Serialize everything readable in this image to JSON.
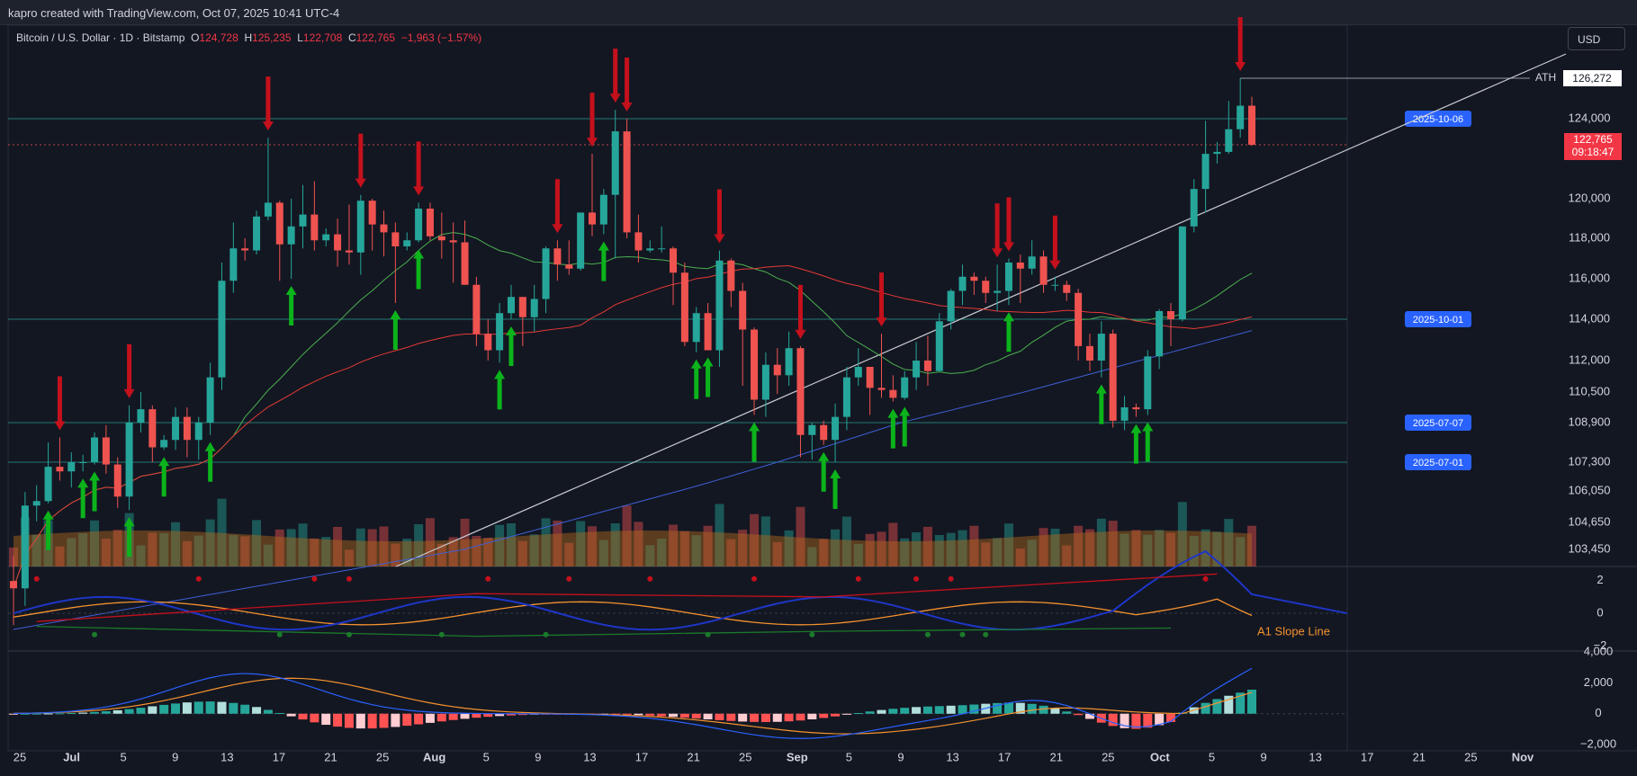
{
  "header": {
    "attribution": "kapro created with TradingView.com, Oct 07, 2025 10:41 UTC-4"
  },
  "legend": {
    "symbol": "Bitcoin / U.S. Dollar · 1D · Bitstamp",
    "open_label": "O",
    "open": "124,728",
    "high_label": "H",
    "high": "125,235",
    "low_label": "L",
    "low": "122,708",
    "close_label": "C",
    "close": "122,765",
    "change": "−1,963 (−1.57%)"
  },
  "currency_button": "USD",
  "colors": {
    "background": "#131722",
    "up": "#26a69a",
    "down": "#ef5350",
    "accent_blue": "#2962ff",
    "signal_up": "#0cb31b",
    "signal_down": "#c4111c",
    "orange": "#f5922e"
  },
  "chart_data": [
    {
      "type": "candlestick",
      "title": "Bitcoin / U.S. Dollar · 1D · Bitstamp",
      "x_tick_labels": [
        "25",
        "Jul",
        "5",
        "9",
        "13",
        "17",
        "21",
        "25",
        "Aug",
        "5",
        "9",
        "13",
        "17",
        "21",
        "25",
        "Sep",
        "5",
        "9",
        "13",
        "17",
        "21",
        "25",
        "Oct",
        "5",
        "9",
        "13",
        "17",
        "21",
        "25",
        "Nov"
      ],
      "y_tick_labels": [
        "124,000",
        "120,000",
        "118,000",
        "116,000",
        "114,000",
        "112,000",
        "110,500",
        "108,900",
        "107,300",
        "106,050",
        "104,650",
        "103,450"
      ],
      "y_ticks": [
        124000,
        120000,
        118000,
        116000,
        114000,
        112000,
        110500,
        108900,
        107300,
        106050,
        104650,
        103450
      ],
      "current_price": {
        "value": "122,765",
        "countdown": "09:18:47"
      },
      "ath": {
        "label": "ATH",
        "value": "126,272"
      },
      "horizontal_levels": [
        {
          "label": "2025-10-06",
          "price": 124000
        },
        {
          "label": "2025-10-01",
          "price": 114000
        },
        {
          "label": "2025-07-07",
          "price": 108900
        },
        {
          "label": "2025-07-01",
          "price": 107300
        }
      ],
      "candles": [
        {
          "d": "2025-06-22",
          "o": 101300,
          "h": 103000,
          "l": 98300,
          "c": 100800
        },
        {
          "d": "2025-06-23",
          "o": 100800,
          "h": 106000,
          "l": 99600,
          "c": 105400
        },
        {
          "d": "2025-06-24",
          "o": 105400,
          "h": 106300,
          "l": 104700,
          "c": 105600
        },
        {
          "d": "2025-06-25",
          "o": 105600,
          "h": 108100,
          "l": 105500,
          "c": 107100
        },
        {
          "d": "2025-06-26",
          "o": 107100,
          "h": 108300,
          "l": 106500,
          "c": 106900
        },
        {
          "d": "2025-06-27",
          "o": 106900,
          "h": 107700,
          "l": 106200,
          "c": 107300
        },
        {
          "d": "2025-06-28",
          "o": 107300,
          "h": 107600,
          "l": 106900,
          "c": 107300
        },
        {
          "d": "2025-06-29",
          "o": 107300,
          "h": 108500,
          "l": 107200,
          "c": 108300
        },
        {
          "d": "2025-06-30",
          "o": 108300,
          "h": 108800,
          "l": 106800,
          "c": 107200
        },
        {
          "d": "2025-07-01",
          "o": 107200,
          "h": 107500,
          "l": 105300,
          "c": 105800
        },
        {
          "d": "2025-07-02",
          "o": 105800,
          "h": 109800,
          "l": 105200,
          "c": 108900
        },
        {
          "d": "2025-07-03",
          "o": 108900,
          "h": 110500,
          "l": 108500,
          "c": 109600
        },
        {
          "d": "2025-07-04",
          "o": 109600,
          "h": 109800,
          "l": 107300,
          "c": 107900
        },
        {
          "d": "2025-07-05",
          "o": 107900,
          "h": 108400,
          "l": 107800,
          "c": 108200
        },
        {
          "d": "2025-07-06",
          "o": 108200,
          "h": 109700,
          "l": 107800,
          "c": 109200
        },
        {
          "d": "2025-07-07",
          "o": 109200,
          "h": 109700,
          "l": 107500,
          "c": 108200
        },
        {
          "d": "2025-07-08",
          "o": 108200,
          "h": 109200,
          "l": 107400,
          "c": 108900
        },
        {
          "d": "2025-07-09",
          "o": 108900,
          "h": 111900,
          "l": 108400,
          "c": 111200
        },
        {
          "d": "2025-07-10",
          "o": 111200,
          "h": 116800,
          "l": 110600,
          "c": 115900
        },
        {
          "d": "2025-07-11",
          "o": 115900,
          "h": 118800,
          "l": 115300,
          "c": 117500
        },
        {
          "d": "2025-07-12",
          "o": 117500,
          "h": 118000,
          "l": 116900,
          "c": 117400
        },
        {
          "d": "2025-07-13",
          "o": 117400,
          "h": 119400,
          "l": 117200,
          "c": 119100
        },
        {
          "d": "2025-07-14",
          "o": 119100,
          "h": 123100,
          "l": 118900,
          "c": 119800
        },
        {
          "d": "2025-07-15",
          "o": 119800,
          "h": 119900,
          "l": 115900,
          "c": 117700
        },
        {
          "d": "2025-07-16",
          "o": 117700,
          "h": 120000,
          "l": 116000,
          "c": 118600
        },
        {
          "d": "2025-07-17",
          "o": 118600,
          "h": 120700,
          "l": 117500,
          "c": 119200
        },
        {
          "d": "2025-07-18",
          "o": 119200,
          "h": 120900,
          "l": 117400,
          "c": 117900
        },
        {
          "d": "2025-07-19",
          "o": 117900,
          "h": 118500,
          "l": 117600,
          "c": 118200
        },
        {
          "d": "2025-07-20",
          "o": 118200,
          "h": 119000,
          "l": 116600,
          "c": 117400
        },
        {
          "d": "2025-07-21",
          "o": 117400,
          "h": 119700,
          "l": 116700,
          "c": 117300
        },
        {
          "d": "2025-07-22",
          "o": 117300,
          "h": 120200,
          "l": 116200,
          "c": 119900
        },
        {
          "d": "2025-07-23",
          "o": 119900,
          "h": 120000,
          "l": 117400,
          "c": 118700
        },
        {
          "d": "2025-07-24",
          "o": 118700,
          "h": 119400,
          "l": 117100,
          "c": 118300
        },
        {
          "d": "2025-07-25",
          "o": 118300,
          "h": 118800,
          "l": 114800,
          "c": 117600
        },
        {
          "d": "2025-07-26",
          "o": 117600,
          "h": 118300,
          "l": 117400,
          "c": 117900
        },
        {
          "d": "2025-07-27",
          "o": 117900,
          "h": 119800,
          "l": 117800,
          "c": 119500
        },
        {
          "d": "2025-07-28",
          "o": 119500,
          "h": 119800,
          "l": 117900,
          "c": 118100
        },
        {
          "d": "2025-07-29",
          "o": 118100,
          "h": 119300,
          "l": 117000,
          "c": 117900
        },
        {
          "d": "2025-07-30",
          "o": 117900,
          "h": 118800,
          "l": 115800,
          "c": 117800
        },
        {
          "d": "2025-07-31",
          "o": 117800,
          "h": 118900,
          "l": 115700,
          "c": 115700
        },
        {
          "d": "2025-08-01",
          "o": 115700,
          "h": 116100,
          "l": 112700,
          "c": 113300
        },
        {
          "d": "2025-08-02",
          "o": 113300,
          "h": 114000,
          "l": 112000,
          "c": 112500
        },
        {
          "d": "2025-08-03",
          "o": 112500,
          "h": 114800,
          "l": 111900,
          "c": 114300
        },
        {
          "d": "2025-08-04",
          "o": 114300,
          "h": 115700,
          "l": 114000,
          "c": 115100
        },
        {
          "d": "2025-08-05",
          "o": 115100,
          "h": 115100,
          "l": 112700,
          "c": 114100
        },
        {
          "d": "2025-08-06",
          "o": 114100,
          "h": 115700,
          "l": 113400,
          "c": 115000
        },
        {
          "d": "2025-08-07",
          "o": 115000,
          "h": 117600,
          "l": 114300,
          "c": 117500
        },
        {
          "d": "2025-08-08",
          "o": 117500,
          "h": 117900,
          "l": 115900,
          "c": 116700
        },
        {
          "d": "2025-08-09",
          "o": 116700,
          "h": 117900,
          "l": 116200,
          "c": 116500
        },
        {
          "d": "2025-08-10",
          "o": 116500,
          "h": 119300,
          "l": 116400,
          "c": 119300
        },
        {
          "d": "2025-08-11",
          "o": 119300,
          "h": 122300,
          "l": 118100,
          "c": 118700
        },
        {
          "d": "2025-08-12",
          "o": 118700,
          "h": 120500,
          "l": 118200,
          "c": 120200
        },
        {
          "d": "2025-08-13",
          "o": 120200,
          "h": 124500,
          "l": 117000,
          "c": 123400
        },
        {
          "d": "2025-08-14",
          "o": 123400,
          "h": 124000,
          "l": 118000,
          "c": 118300
        },
        {
          "d": "2025-08-15",
          "o": 118300,
          "h": 119200,
          "l": 116800,
          "c": 117400
        },
        {
          "d": "2025-08-16",
          "o": 117400,
          "h": 117900,
          "l": 117300,
          "c": 117500
        },
        {
          "d": "2025-08-17",
          "o": 117500,
          "h": 118600,
          "l": 117300,
          "c": 117500
        },
        {
          "d": "2025-08-18",
          "o": 117500,
          "h": 117600,
          "l": 114700,
          "c": 116300
        },
        {
          "d": "2025-08-19",
          "o": 116300,
          "h": 116800,
          "l": 112700,
          "c": 112900
        },
        {
          "d": "2025-08-20",
          "o": 112900,
          "h": 114600,
          "l": 112400,
          "c": 114300
        },
        {
          "d": "2025-08-21",
          "o": 114300,
          "h": 114800,
          "l": 112500,
          "c": 112500
        },
        {
          "d": "2025-08-22",
          "o": 112500,
          "h": 117400,
          "l": 111700,
          "c": 116900
        },
        {
          "d": "2025-08-23",
          "o": 116900,
          "h": 117000,
          "l": 114600,
          "c": 115400
        },
        {
          "d": "2025-08-24",
          "o": 115400,
          "h": 115800,
          "l": 110800,
          "c": 113500
        },
        {
          "d": "2025-08-25",
          "o": 113500,
          "h": 113600,
          "l": 109300,
          "c": 110100
        },
        {
          "d": "2025-08-26",
          "o": 110100,
          "h": 112400,
          "l": 109200,
          "c": 111800
        },
        {
          "d": "2025-08-27",
          "o": 111800,
          "h": 112600,
          "l": 110400,
          "c": 111300
        },
        {
          "d": "2025-08-28",
          "o": 111300,
          "h": 113400,
          "l": 110800,
          "c": 112600
        },
        {
          "d": "2025-08-29",
          "o": 112600,
          "h": 112700,
          "l": 107500,
          "c": 108400
        },
        {
          "d": "2025-08-30",
          "o": 108400,
          "h": 108900,
          "l": 107400,
          "c": 108800
        },
        {
          "d": "2025-08-31",
          "o": 108800,
          "h": 109000,
          "l": 108000,
          "c": 108200
        },
        {
          "d": "2025-09-01",
          "o": 108200,
          "h": 109900,
          "l": 107300,
          "c": 109200
        },
        {
          "d": "2025-09-02",
          "o": 109200,
          "h": 111700,
          "l": 108600,
          "c": 111200
        },
        {
          "d": "2025-09-03",
          "o": 111200,
          "h": 112600,
          "l": 110800,
          "c": 111700
        },
        {
          "d": "2025-09-04",
          "o": 111700,
          "h": 111700,
          "l": 109300,
          "c": 110700
        },
        {
          "d": "2025-09-05",
          "o": 110700,
          "h": 113300,
          "l": 110200,
          "c": 110600
        },
        {
          "d": "2025-09-06",
          "o": 110600,
          "h": 111300,
          "l": 110000,
          "c": 110200
        },
        {
          "d": "2025-09-07",
          "o": 110200,
          "h": 111500,
          "l": 110100,
          "c": 111200
        },
        {
          "d": "2025-09-08",
          "o": 111200,
          "h": 112900,
          "l": 110600,
          "c": 112000
        },
        {
          "d": "2025-09-09",
          "o": 112000,
          "h": 113200,
          "l": 110800,
          "c": 111500
        },
        {
          "d": "2025-09-10",
          "o": 111500,
          "h": 114300,
          "l": 111500,
          "c": 113900
        },
        {
          "d": "2025-09-11",
          "o": 113900,
          "h": 115500,
          "l": 113500,
          "c": 115400
        },
        {
          "d": "2025-09-12",
          "o": 115400,
          "h": 116700,
          "l": 114700,
          "c": 116100
        },
        {
          "d": "2025-09-13",
          "o": 116100,
          "h": 116300,
          "l": 115200,
          "c": 115900
        },
        {
          "d": "2025-09-14",
          "o": 115900,
          "h": 116100,
          "l": 114800,
          "c": 115300
        },
        {
          "d": "2025-09-15",
          "o": 115300,
          "h": 116700,
          "l": 114400,
          "c": 115400
        },
        {
          "d": "2025-09-16",
          "o": 115400,
          "h": 117000,
          "l": 114700,
          "c": 116800
        },
        {
          "d": "2025-09-17",
          "o": 116800,
          "h": 117200,
          "l": 114800,
          "c": 116500
        },
        {
          "d": "2025-09-18",
          "o": 116500,
          "h": 117900,
          "l": 116200,
          "c": 117100
        },
        {
          "d": "2025-09-19",
          "o": 117100,
          "h": 117400,
          "l": 115300,
          "c": 115700
        },
        {
          "d": "2025-09-20",
          "o": 115700,
          "h": 116100,
          "l": 115400,
          "c": 115700
        },
        {
          "d": "2025-09-21",
          "o": 115700,
          "h": 115900,
          "l": 114900,
          "c": 115300
        },
        {
          "d": "2025-09-22",
          "o": 115300,
          "h": 115500,
          "l": 112000,
          "c": 112700
        },
        {
          "d": "2025-09-23",
          "o": 112700,
          "h": 113300,
          "l": 111500,
          "c": 112000
        },
        {
          "d": "2025-09-24",
          "o": 112000,
          "h": 113900,
          "l": 111200,
          "c": 113300
        },
        {
          "d": "2025-09-25",
          "o": 113300,
          "h": 113500,
          "l": 108700,
          "c": 109000
        },
        {
          "d": "2025-09-26",
          "o": 109000,
          "h": 110300,
          "l": 108600,
          "c": 109700
        },
        {
          "d": "2025-09-27",
          "o": 109700,
          "h": 109900,
          "l": 109200,
          "c": 109600
        },
        {
          "d": "2025-09-28",
          "o": 109600,
          "h": 112500,
          "l": 109300,
          "c": 112200
        },
        {
          "d": "2025-09-29",
          "o": 112200,
          "h": 114500,
          "l": 111600,
          "c": 114400
        },
        {
          "d": "2025-09-30",
          "o": 114400,
          "h": 114800,
          "l": 112700,
          "c": 114000
        },
        {
          "d": "2025-10-01",
          "o": 114000,
          "h": 118600,
          "l": 113900,
          "c": 118600
        },
        {
          "d": "2025-10-02",
          "o": 118600,
          "h": 121000,
          "l": 118300,
          "c": 120500
        },
        {
          "d": "2025-10-03",
          "o": 120500,
          "h": 123900,
          "l": 119300,
          "c": 122300
        },
        {
          "d": "2025-10-04",
          "o": 122300,
          "h": 122900,
          "l": 121800,
          "c": 122400
        },
        {
          "d": "2025-10-05",
          "o": 122400,
          "h": 125000,
          "l": 122300,
          "c": 123500
        },
        {
          "d": "2025-10-06",
          "o": 123500,
          "h": 126272,
          "l": 123100,
          "c": 124728
        },
        {
          "d": "2025-10-07",
          "o": 124728,
          "h": 125235,
          "l": 122708,
          "c": 122765
        }
      ],
      "signals_down": [
        "2025-06-26",
        "2025-07-02",
        "2025-07-14",
        "2025-07-22",
        "2025-07-27",
        "2025-08-08",
        "2025-08-11",
        "2025-08-13",
        "2025-08-14",
        "2025-08-22",
        "2025-08-29",
        "2025-09-05",
        "2025-09-15",
        "2025-09-16",
        "2025-09-20",
        "2025-10-06"
      ],
      "signals_up": [
        "2025-06-25",
        "2025-06-28",
        "2025-06-29",
        "2025-07-02",
        "2025-07-05",
        "2025-07-09",
        "2025-07-16",
        "2025-07-25",
        "2025-07-27",
        "2025-08-03",
        "2025-08-04",
        "2025-08-12",
        "2025-08-20",
        "2025-08-21",
        "2025-08-25",
        "2025-08-31",
        "2025-09-01",
        "2025-09-06",
        "2025-09-07",
        "2025-09-16",
        "2025-09-24",
        "2025-09-27",
        "2025-09-28"
      ]
    },
    {
      "type": "line",
      "title": "",
      "annotation": "A1 Slope Line",
      "y_tick_labels": [
        "2",
        "0",
        "−2"
      ],
      "ylim": [
        -2.3,
        2.8
      ]
    },
    {
      "type": "bar",
      "title": "",
      "y_tick_labels": [
        "4,000",
        "2,000",
        "0",
        "−2,000"
      ],
      "ylim": [
        -2400,
        4000
      ]
    }
  ]
}
